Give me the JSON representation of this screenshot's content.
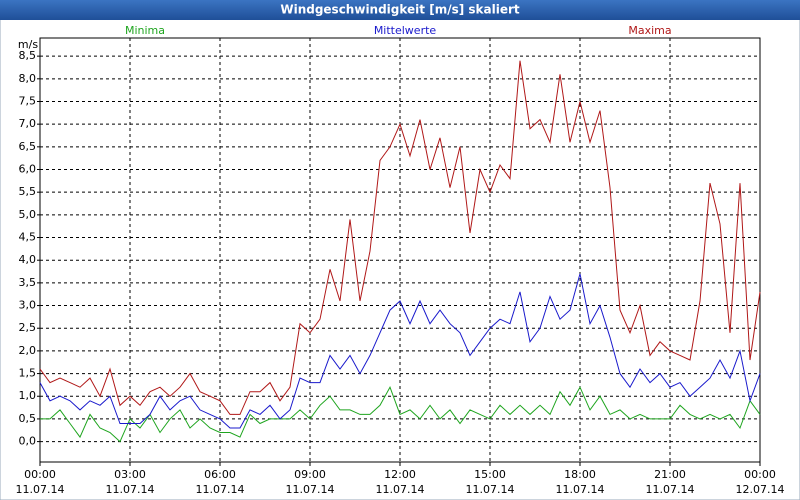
{
  "chart_data": {
    "type": "line",
    "title": "Windgeschwindigkeit [m/s] skaliert",
    "y_label": "m/s",
    "x": [
      0,
      20,
      40,
      60,
      80,
      100,
      120,
      140,
      160,
      180,
      200,
      220,
      240,
      260,
      280,
      300,
      320,
      340,
      360,
      380,
      400,
      420,
      440,
      460,
      480,
      500,
      520,
      540,
      560,
      580,
      600,
      620,
      640,
      660,
      680,
      700,
      720,
      740,
      760,
      780,
      800,
      820,
      840,
      860,
      880,
      900,
      920,
      940,
      960,
      980,
      1000,
      1020,
      1040,
      1060,
      1080,
      1100,
      1120,
      1140,
      1160,
      1180,
      1200,
      1220,
      1240,
      1260,
      1280,
      1300,
      1320,
      1340,
      1360,
      1380,
      1400,
      1420,
      1440
    ],
    "series": [
      {
        "name": "Minima",
        "color": "#1fa51f",
        "values": [
          0.5,
          0.5,
          0.7,
          0.4,
          0.1,
          0.6,
          0.3,
          0.2,
          0.0,
          0.5,
          0.3,
          0.6,
          0.2,
          0.5,
          0.7,
          0.3,
          0.5,
          0.3,
          0.2,
          0.2,
          0.1,
          0.6,
          0.4,
          0.5,
          0.5,
          0.5,
          0.7,
          0.5,
          0.8,
          1.0,
          0.7,
          0.7,
          0.6,
          0.6,
          0.8,
          1.2,
          0.6,
          0.7,
          0.5,
          0.8,
          0.5,
          0.7,
          0.4,
          0.7,
          0.6,
          0.5,
          0.8,
          0.6,
          0.8,
          0.6,
          0.8,
          0.6,
          1.1,
          0.8,
          1.2,
          0.7,
          1.0,
          0.6,
          0.7,
          0.5,
          0.6,
          0.5,
          0.5,
          0.5,
          0.8,
          0.6,
          0.5,
          0.6,
          0.5,
          0.6,
          0.3,
          0.9,
          0.6
        ]
      },
      {
        "name": "Mittelwerte",
        "color": "#1a1acc",
        "values": [
          1.3,
          0.9,
          1.0,
          0.9,
          0.7,
          0.9,
          0.8,
          1.0,
          0.4,
          0.4,
          0.4,
          0.6,
          1.0,
          0.7,
          0.9,
          1.0,
          0.7,
          0.6,
          0.5,
          0.3,
          0.3,
          0.7,
          0.6,
          0.8,
          0.5,
          0.7,
          1.4,
          1.3,
          1.3,
          1.9,
          1.6,
          1.9,
          1.5,
          1.9,
          2.4,
          2.9,
          3.1,
          2.6,
          3.1,
          2.6,
          2.9,
          2.6,
          2.4,
          1.9,
          2.2,
          2.5,
          2.7,
          2.6,
          3.3,
          2.2,
          2.5,
          3.2,
          2.7,
          2.9,
          3.7,
          2.6,
          3.0,
          2.3,
          1.5,
          1.2,
          1.6,
          1.3,
          1.5,
          1.2,
          1.3,
          1.0,
          1.2,
          1.4,
          1.8,
          1.4,
          2.0,
          0.9,
          1.5
        ]
      },
      {
        "name": "Maxima",
        "color": "#b01818",
        "values": [
          1.6,
          1.3,
          1.4,
          1.3,
          1.2,
          1.4,
          1.0,
          1.6,
          0.8,
          1.0,
          0.8,
          1.1,
          1.2,
          1.0,
          1.2,
          1.5,
          1.1,
          1.0,
          0.9,
          0.6,
          0.6,
          1.1,
          1.1,
          1.3,
          0.9,
          1.2,
          2.6,
          2.4,
          2.7,
          3.8,
          3.1,
          4.9,
          3.1,
          4.2,
          6.2,
          6.5,
          7.0,
          6.3,
          7.1,
          6.0,
          6.7,
          5.6,
          6.5,
          4.6,
          6.0,
          5.5,
          6.1,
          5.8,
          8.4,
          6.9,
          7.1,
          6.6,
          8.1,
          6.6,
          7.5,
          6.6,
          7.3,
          5.6,
          2.9,
          2.4,
          3.0,
          1.9,
          2.2,
          2.0,
          1.9,
          1.8,
          3.1,
          5.7,
          4.8,
          2.4,
          5.7,
          1.8,
          3.3
        ]
      }
    ],
    "xlim": [
      0,
      1440
    ],
    "xticks": [
      {
        "value": 0,
        "label": "00:00"
      },
      {
        "value": 180,
        "label": "03:00"
      },
      {
        "value": 360,
        "label": "06:00"
      },
      {
        "value": 540,
        "label": "09:00"
      },
      {
        "value": 720,
        "label": "12:00"
      },
      {
        "value": 900,
        "label": "15:00"
      },
      {
        "value": 1080,
        "label": "18:00"
      },
      {
        "value": 1260,
        "label": "21:00"
      },
      {
        "value": 1440,
        "label": "00:00"
      }
    ],
    "xtick_dates": [
      "11.07.14",
      "11.07.14",
      "11.07.14",
      "11.07.14",
      "11.07.14",
      "11.07.14",
      "11.07.14",
      "11.07.14",
      "12.07.14"
    ],
    "ylim": [
      -0.45,
      8.9
    ],
    "yticks": [
      {
        "value": 0,
        "label": "0,0"
      },
      {
        "value": 0.5,
        "label": "0,5"
      },
      {
        "value": 1,
        "label": "1,0"
      },
      {
        "value": 1.5,
        "label": "1,5"
      },
      {
        "value": 2,
        "label": "2,0"
      },
      {
        "value": 2.5,
        "label": "2,5"
      },
      {
        "value": 3,
        "label": "3,0"
      },
      {
        "value": 3.5,
        "label": "3,5"
      },
      {
        "value": 4,
        "label": "4,0"
      },
      {
        "value": 4.5,
        "label": "4,5"
      },
      {
        "value": 5,
        "label": "5,0"
      },
      {
        "value": 5.5,
        "label": "5,5"
      },
      {
        "value": 6,
        "label": "6,0"
      },
      {
        "value": 6.5,
        "label": "6,5"
      },
      {
        "value": 7,
        "label": "7,0"
      },
      {
        "value": 7.5,
        "label": "7,5"
      },
      {
        "value": 8,
        "label": "8,0"
      },
      {
        "value": 8.5,
        "label": "8,5"
      }
    ],
    "grid": true
  }
}
